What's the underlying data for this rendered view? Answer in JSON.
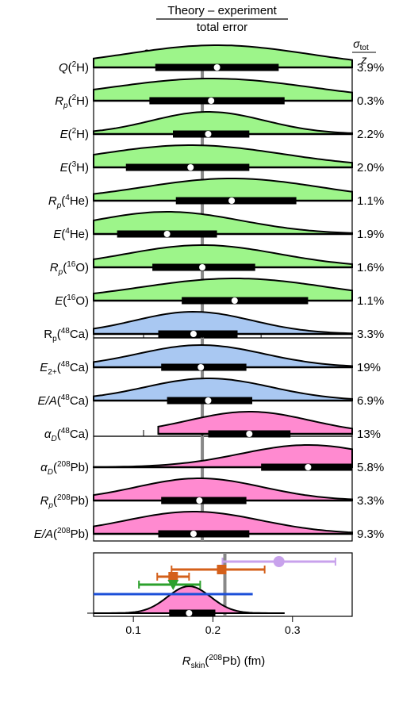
{
  "chart_data": [
    {
      "type": "violin",
      "title_numerator": "Theory – experiment",
      "title_denominator": "total error",
      "xlim": [
        -3.7,
        5.1
      ],
      "xticks": [
        -2,
        0,
        2
      ],
      "right_header_top": "σ",
      "right_header_sub": "tot",
      "right_header_den": "z",
      "reference_value": 0,
      "rows": [
        {
          "label": "Q(2H)",
          "label_parts": {
            "pre": "Q",
            "sup": "2",
            "post": "H"
          },
          "group": "green",
          "median": 0.5,
          "box": [
            -1.6,
            2.6
          ],
          "min": -3.7,
          "max": 5.1,
          "error": "3.9%"
        },
        {
          "label": "Rp(2H)",
          "label_parts": {
            "pre": "R",
            "sub": "p",
            "sup": "2",
            "post": "H"
          },
          "group": "green",
          "median": 0.3,
          "box": [
            -1.8,
            2.8
          ],
          "min": -3.7,
          "max": 5.1,
          "error": "0.3%"
        },
        {
          "label": "E(2H)",
          "label_parts": {
            "pre": "E",
            "sup": "2",
            "post": "H"
          },
          "group": "green",
          "median": 0.2,
          "box": [
            -1.0,
            1.6
          ],
          "min": -3.7,
          "max": 5.1,
          "error": "2.2%"
        },
        {
          "label": "E(3H)",
          "label_parts": {
            "pre": "E",
            "sup": "3",
            "post": "H"
          },
          "group": "green",
          "median": -0.4,
          "box": [
            -2.6,
            1.6
          ],
          "min": -3.7,
          "max": 5.1,
          "error": "2.0%"
        },
        {
          "label": "Rp(4He)",
          "label_parts": {
            "pre": "R",
            "sub": "p",
            "sup": "4",
            "post": "He"
          },
          "group": "green",
          "median": 1.0,
          "box": [
            -0.9,
            3.2
          ],
          "min": -3.7,
          "max": 5.1,
          "error": "1.1%"
        },
        {
          "label": "E(4He)",
          "label_parts": {
            "pre": "E",
            "sup": "4",
            "post": "He"
          },
          "group": "green",
          "median": -1.2,
          "box": [
            -2.9,
            0.5
          ],
          "min": -3.7,
          "max": 5.1,
          "error": "1.9%"
        },
        {
          "label": "Rp(16O)",
          "label_parts": {
            "pre": "R",
            "sub": "p",
            "sup": "16",
            "post": "O"
          },
          "group": "green",
          "median": 0.0,
          "box": [
            -1.7,
            1.8
          ],
          "min": -3.7,
          "max": 5.1,
          "error": "1.6%"
        },
        {
          "label": "E(16O)",
          "label_parts": {
            "pre": "E",
            "sup": "16",
            "post": "O"
          },
          "group": "green",
          "median": 1.1,
          "box": [
            -0.7,
            3.6
          ],
          "min": -3.7,
          "max": 5.1,
          "error": "1.1%"
        },
        {
          "label": "Rp(48Ca)",
          "label_parts": {
            "pre": "R",
            "sub": "p",
            "sup": "48",
            "post": "Ca",
            "upright": true
          },
          "group": "blue",
          "median": -0.3,
          "box": [
            -1.5,
            1.2
          ],
          "min": -3.7,
          "max": 5.1,
          "error": "3.3%"
        },
        {
          "label": "E2+(48Ca)",
          "label_parts": {
            "pre": "E",
            "sub": "2+",
            "sup": "48",
            "post": "Ca"
          },
          "group": "blue",
          "median": -0.05,
          "box": [
            -1.4,
            1.5
          ],
          "min": -3.7,
          "max": 5.1,
          "error": "19%"
        },
        {
          "label": "E/A(48Ca)",
          "label_parts": {
            "pre": "E/A",
            "sup": "48",
            "post": "Ca"
          },
          "group": "blue",
          "median": 0.2,
          "box": [
            -1.2,
            1.7
          ],
          "min": -3.7,
          "max": 5.1,
          "error": "6.9%"
        },
        {
          "label": "αD(48Ca)",
          "label_parts": {
            "pre": "α",
            "sub": "D",
            "sup": "48",
            "post": "Ca"
          },
          "group": "pink",
          "median": 1.6,
          "box": [
            0.2,
            3.0
          ],
          "min": -1.5,
          "max": 5.1,
          "error": "13%"
        },
        {
          "label": "αD(208Pb)",
          "label_parts": {
            "pre": "α",
            "sub": "D",
            "sup": "208",
            "post": "Pb"
          },
          "group": "pink",
          "median": 3.6,
          "box": [
            2.0,
            5.1
          ],
          "min": -3.7,
          "max": 5.1,
          "error": "5.8%"
        },
        {
          "label": "Rp(208Pb)",
          "label_parts": {
            "pre": "R",
            "sub": "p",
            "sup": "208",
            "post": "Pb"
          },
          "group": "pink",
          "median": -0.1,
          "box": [
            -1.4,
            1.5
          ],
          "min": -3.7,
          "max": 5.1,
          "error": "3.3%"
        },
        {
          "label": "E/A(208Pb)",
          "label_parts": {
            "pre": "E/A",
            "sup": "208",
            "post": "Pb"
          },
          "group": "pink",
          "median": -0.3,
          "box": [
            -1.5,
            1.6
          ],
          "min": -3.7,
          "max": 5.1,
          "error": "9.3%"
        }
      ]
    },
    {
      "type": "violin+errorbars",
      "xlabel_pre": "R",
      "xlabel_sub": "skin",
      "xlabel_sup": "208",
      "xlabel_post": "Pb) (fm)",
      "xlabel_paren": "(",
      "xlim": [
        0.05,
        0.375
      ],
      "xticks": [
        0.1,
        0.2,
        0.3
      ],
      "xtick_labels": [
        "0.1",
        "0.2",
        "0.3"
      ],
      "reference_value": 0.215,
      "distribution": {
        "median": 0.17,
        "box": [
          0.145,
          0.203
        ],
        "min": 0.05,
        "max": 0.29,
        "color": "#ff8ad0"
      },
      "measurements": [
        {
          "value": 0.283,
          "err_low": 0.071,
          "err_high": 0.071,
          "marker": "circle",
          "color": "#c8a2ec"
        },
        {
          "value": 0.211,
          "err_low": 0.063,
          "err_high": 0.054,
          "marker": "square",
          "color": "#d4601b"
        },
        {
          "value": 0.15,
          "err_low": 0.02,
          "err_high": 0.02,
          "marker": "square",
          "color": "#d4601b"
        },
        {
          "value": 0.15,
          "err_low": 0.043,
          "err_high": 0.034,
          "marker": "triangle",
          "color": "#2ca02c"
        },
        {
          "value": 0.15,
          "err_low": 0.1,
          "err_high": 0.1,
          "marker": "none",
          "color": "#1c4fd8"
        }
      ]
    }
  ],
  "colors": {
    "green": "#9df58a",
    "blue": "#a9c8f2",
    "pink": "#ff8ad0",
    "reference_line": "#888888"
  }
}
